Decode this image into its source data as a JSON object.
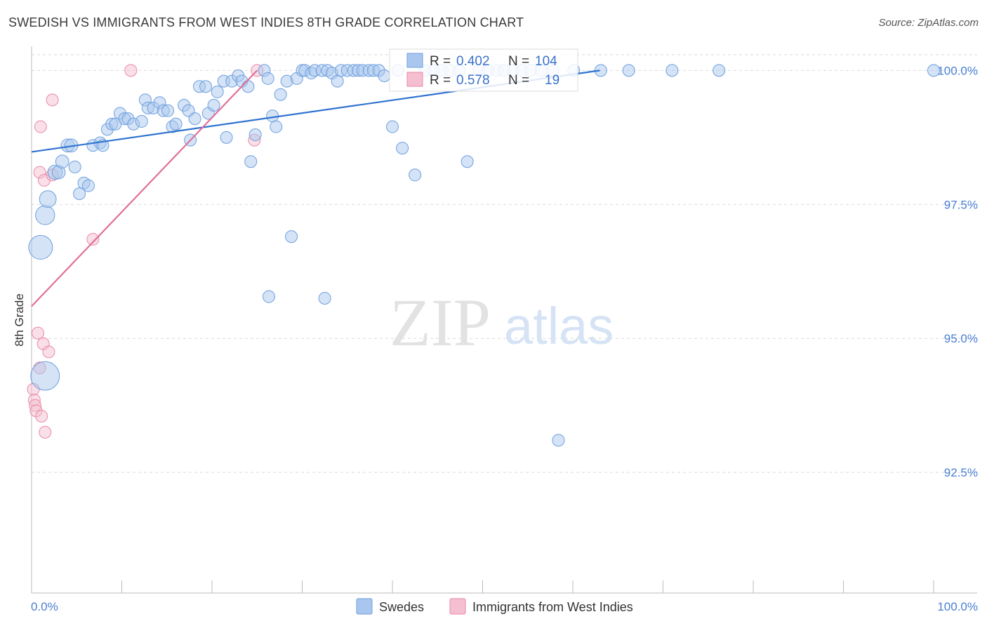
{
  "title": "SWEDISH VS IMMIGRANTS FROM WEST INDIES 8TH GRADE CORRELATION CHART",
  "source": "Source: ZipAtlas.com",
  "watermark": {
    "zip": "ZIP",
    "atlas": "atlas"
  },
  "colors": {
    "blue_fill": "#a9c7ee",
    "blue_stroke": "#6f9fde",
    "blue_line": "#2f73d0",
    "pink_fill": "#f4bfd0",
    "pink_stroke": "#e98aa9",
    "pink_line": "#e0709a",
    "grid": "#d9d9d9",
    "axis": "#bbbbbb",
    "tick_text": "#4a7fd4"
  },
  "legend": {
    "rows": [
      {
        "r_label": "R = ",
        "r_value": "0.402",
        "n_label": "N = ",
        "n_value": "104",
        "color": "blue"
      },
      {
        "r_label": "R = ",
        "r_value": "0.578",
        "n_label": "N = ",
        "n_value": "19",
        "color": "pink"
      }
    ]
  },
  "chart_data": {
    "type": "scatter",
    "title": "SWEDISH VS IMMIGRANTS FROM WEST INDIES 8TH GRADE CORRELATION CHART",
    "xlabel": "",
    "ylabel": "8th Grade",
    "x_ticks": [
      "0.0%",
      "100.0%"
    ],
    "y_ticks": [
      "100.0%",
      "97.5%",
      "95.0%",
      "92.5%"
    ],
    "y_tick_values": [
      100.0,
      97.5,
      95.0,
      92.5
    ],
    "xlim": [
      0,
      100
    ],
    "ylim": [
      90.25,
      100.45
    ],
    "legend_position": "top-center",
    "series": [
      {
        "name": "Swedes",
        "color": "blue",
        "trend": {
          "x": [
            0,
            63
          ],
          "y": [
            98.48,
            100.0
          ]
        },
        "points": [
          [
            1.5,
            94.3,
            24
          ],
          [
            1.0,
            96.7,
            20
          ],
          [
            1.5,
            97.3,
            16
          ],
          [
            1.8,
            97.6,
            14
          ],
          [
            2.6,
            98.1,
            12
          ],
          [
            3.0,
            98.1,
            11
          ],
          [
            3.4,
            98.3,
            11
          ],
          [
            4.0,
            98.6,
            11
          ],
          [
            4.4,
            98.6,
            11
          ],
          [
            4.8,
            98.2,
            10
          ],
          [
            5.3,
            97.7,
            10
          ],
          [
            5.8,
            97.9,
            10
          ],
          [
            6.3,
            97.85,
            10
          ],
          [
            6.8,
            98.6,
            10
          ],
          [
            7.6,
            98.65,
            10
          ],
          [
            7.9,
            98.6,
            10
          ],
          [
            8.4,
            98.9,
            10
          ],
          [
            8.9,
            99.0,
            10
          ],
          [
            9.3,
            99.0,
            10
          ],
          [
            9.8,
            99.2,
            10
          ],
          [
            10.3,
            99.1,
            10
          ],
          [
            10.7,
            99.1,
            10
          ],
          [
            11.3,
            99.0,
            10
          ],
          [
            12.2,
            99.05,
            10
          ],
          [
            12.6,
            99.45,
            10
          ],
          [
            12.9,
            99.3,
            10
          ],
          [
            13.5,
            99.3,
            10
          ],
          [
            14.2,
            99.4,
            10
          ],
          [
            14.6,
            99.25,
            10
          ],
          [
            15.1,
            99.25,
            10
          ],
          [
            15.6,
            98.95,
            10
          ],
          [
            16.0,
            99.0,
            10
          ],
          [
            16.9,
            99.35,
            10
          ],
          [
            17.4,
            99.25,
            10
          ],
          [
            17.6,
            98.7,
            10
          ],
          [
            18.1,
            99.1,
            10
          ],
          [
            18.6,
            99.7,
            10
          ],
          [
            19.3,
            99.7,
            10
          ],
          [
            19.6,
            99.2,
            10
          ],
          [
            20.2,
            99.35,
            10
          ],
          [
            20.6,
            99.6,
            10
          ],
          [
            21.3,
            99.8,
            10
          ],
          [
            21.6,
            98.75,
            10
          ],
          [
            22.2,
            99.8,
            10
          ],
          [
            22.9,
            99.9,
            10
          ],
          [
            23.3,
            99.8,
            10
          ],
          [
            24.0,
            99.7,
            10
          ],
          [
            24.3,
            98.3,
            10
          ],
          [
            24.8,
            98.8,
            10
          ],
          [
            25.8,
            100.0,
            10
          ],
          [
            26.2,
            99.85,
            10
          ],
          [
            26.7,
            99.15,
            10
          ],
          [
            27.1,
            98.95,
            10
          ],
          [
            27.6,
            99.55,
            10
          ],
          [
            28.3,
            99.8,
            10
          ],
          [
            28.8,
            96.9,
            10
          ],
          [
            29.4,
            99.85,
            10
          ],
          [
            30.0,
            100.0,
            10
          ],
          [
            30.3,
            100.0,
            10
          ],
          [
            31.0,
            99.95,
            10
          ],
          [
            31.4,
            100.0,
            10
          ],
          [
            32.2,
            100.0,
            10
          ],
          [
            32.5,
            95.75,
            10
          ],
          [
            32.8,
            100.0,
            10
          ],
          [
            33.3,
            99.95,
            10
          ],
          [
            33.9,
            99.8,
            10
          ],
          [
            34.3,
            100.0,
            10
          ],
          [
            35.0,
            100.0,
            10
          ],
          [
            35.7,
            100.0,
            10
          ],
          [
            36.2,
            100.0,
            10
          ],
          [
            36.7,
            100.0,
            10
          ],
          [
            37.4,
            100.0,
            10
          ],
          [
            37.9,
            100.0,
            10
          ],
          [
            38.5,
            100.0,
            10
          ],
          [
            39.1,
            99.9,
            10
          ],
          [
            40.0,
            98.95,
            10
          ],
          [
            40.6,
            100.0,
            10
          ],
          [
            41.1,
            98.55,
            10
          ],
          [
            42.5,
            98.05,
            10
          ],
          [
            43.6,
            100.0,
            10
          ],
          [
            44.6,
            100.0,
            10
          ],
          [
            45.5,
            100.0,
            10
          ],
          [
            46.4,
            100.0,
            10
          ],
          [
            47.4,
            100.0,
            10
          ],
          [
            48.3,
            98.3,
            10
          ],
          [
            49.6,
            100.0,
            10
          ],
          [
            50.6,
            100.0,
            10
          ],
          [
            51.6,
            100.0,
            10
          ],
          [
            52.4,
            100.0,
            10
          ],
          [
            53.4,
            100.0,
            10
          ],
          [
            54.4,
            100.0,
            10
          ],
          [
            55.3,
            100.0,
            10
          ],
          [
            56.5,
            100.0,
            10
          ],
          [
            57.8,
            100.0,
            10
          ],
          [
            58.4,
            93.1,
            10
          ],
          [
            60.1,
            100.0,
            10
          ],
          [
            63.1,
            100.0,
            10
          ],
          [
            66.2,
            100.0,
            10
          ],
          [
            71.0,
            100.0,
            10
          ],
          [
            76.2,
            100.0,
            10
          ],
          [
            100.0,
            100.0,
            10
          ],
          [
            26.3,
            95.78,
            10
          ]
        ]
      },
      {
        "name": "Immigrants from West Indies",
        "color": "pink",
        "trend": {
          "x": [
            0,
            25
          ],
          "y": [
            95.6,
            100.0
          ]
        },
        "points": [
          [
            0.2,
            94.05,
            10
          ],
          [
            0.3,
            93.85,
            10
          ],
          [
            0.4,
            93.75,
            10
          ],
          [
            0.5,
            93.65,
            10
          ],
          [
            0.7,
            95.1,
            10
          ],
          [
            0.9,
            94.45,
            10
          ],
          [
            1.1,
            93.55,
            10
          ],
          [
            1.3,
            94.9,
            10
          ],
          [
            1.5,
            93.25,
            10
          ],
          [
            1.9,
            94.75,
            10
          ],
          [
            0.9,
            98.1,
            10
          ],
          [
            1.4,
            97.95,
            10
          ],
          [
            2.3,
            98.05,
            10
          ],
          [
            1.0,
            98.95,
            10
          ],
          [
            2.3,
            99.45,
            10
          ],
          [
            6.8,
            96.85,
            10
          ],
          [
            11.0,
            100.0,
            10
          ],
          [
            24.7,
            98.7,
            10
          ],
          [
            25.0,
            100.0,
            10
          ]
        ]
      }
    ]
  },
  "bottom_legend": [
    {
      "label": "Swedes",
      "color": "blue"
    },
    {
      "label": "Immigrants from West Indies",
      "color": "pink"
    }
  ]
}
